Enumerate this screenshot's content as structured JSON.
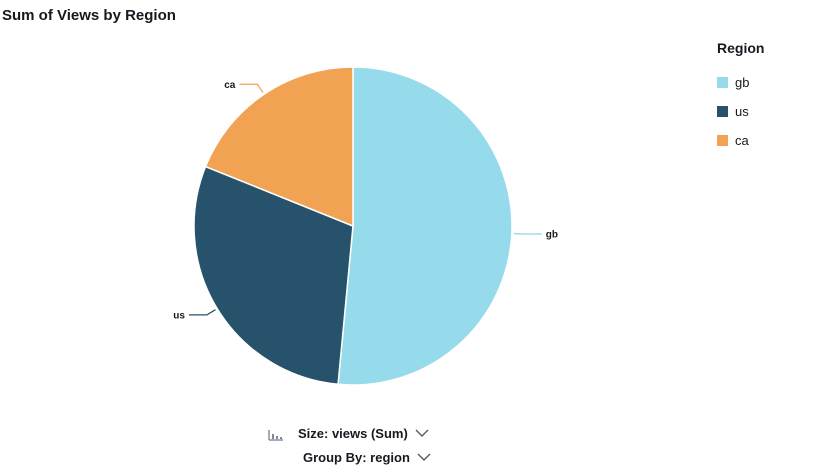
{
  "title": "Sum of Views by Region",
  "legend": {
    "title": "Region",
    "items": [
      {
        "label": "gb",
        "color": "#95dbeb"
      },
      {
        "label": "us",
        "color": "#26526b"
      },
      {
        "label": "ca",
        "color": "#f1a253"
      }
    ]
  },
  "controls": {
    "size_label": "Size: views (Sum)",
    "group_label": "Group By: region"
  },
  "chart_data": {
    "type": "pie",
    "title": "Sum of Views by Region",
    "legend_title": "Region",
    "legend_position": "right",
    "slices": [
      {
        "label": "gb",
        "value": 51.5,
        "color": "#95dbeb"
      },
      {
        "label": "us",
        "value": 29.6,
        "color": "#26526b"
      },
      {
        "label": "ca",
        "value": 18.9,
        "color": "#f1a253"
      }
    ]
  }
}
